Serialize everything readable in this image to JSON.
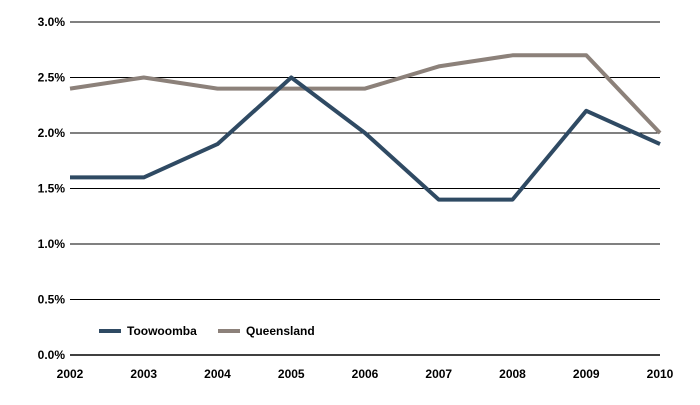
{
  "chart_data": {
    "type": "line",
    "title": "",
    "xlabel": "",
    "ylabel": "",
    "categories": [
      "2002",
      "2003",
      "2004",
      "2005",
      "2006",
      "2007",
      "2008",
      "2009",
      "2010"
    ],
    "ylim": [
      0,
      3.0
    ],
    "yticks": [
      0,
      0.5,
      1.0,
      1.5,
      2.0,
      2.5,
      3.0
    ],
    "ytick_labels": [
      "0.0%",
      "0.5%",
      "1.0%",
      "1.5%",
      "2.0%",
      "2.5%",
      "3.0%"
    ],
    "grid": true,
    "legend_position": "bottom-left",
    "series": [
      {
        "name": "Toowoomba",
        "color": "#2f4a63",
        "values": [
          1.6,
          1.6,
          1.9,
          2.5,
          2.0,
          1.4,
          1.4,
          2.2,
          1.9
        ]
      },
      {
        "name": "Queensland",
        "color": "#8c817a",
        "values": [
          2.4,
          2.5,
          2.4,
          2.4,
          2.4,
          2.6,
          2.7,
          2.7,
          2.0
        ]
      }
    ]
  }
}
